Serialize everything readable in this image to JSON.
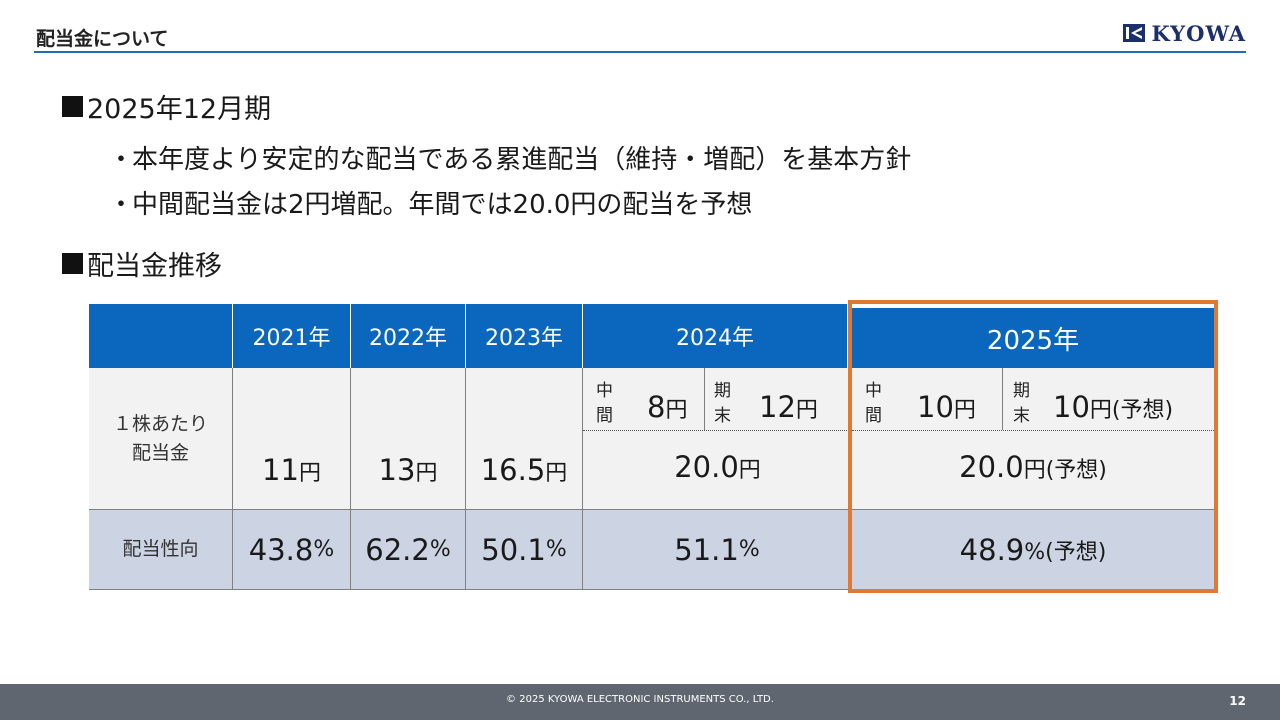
{
  "header": {
    "title": "配当金について",
    "logo_text": "KYOWA"
  },
  "section1": {
    "title": "2025年12月期",
    "bullets": [
      "本年度より安定的な配当である累進配当（維持・増配）を基本方針",
      "中間配当金は2円増配。年間では20.0円の配当を予想"
    ],
    "bullet_mark": "・"
  },
  "section2": {
    "title": "配当金推移"
  },
  "table": {
    "years": [
      "2021年",
      "2022年",
      "2023年",
      "2024年",
      "2025年"
    ],
    "row1_label": "１株あたり\n配当金",
    "row2_label": "配当性向",
    "dividends": [
      {
        "num": "11",
        "unit": "円"
      },
      {
        "num": "13",
        "unit": "円"
      },
      {
        "num": "16.5",
        "unit": "円"
      }
    ],
    "y2024": {
      "interim_label": "中間",
      "interim_num": "8",
      "interim_unit": "円",
      "final_label": "期末",
      "final_num": "12",
      "final_unit": "円",
      "annual_num": "20.0",
      "annual_unit": "円"
    },
    "y2025": {
      "interim_label": "中間",
      "interim_num": "10",
      "interim_unit": "円",
      "final_label": "期末",
      "final_num": "10",
      "final_unit": "円(予想)",
      "annual_num": "20.0",
      "annual_unit": "円(予想)"
    },
    "payout": [
      {
        "num": "43.8",
        "unit": "%"
      },
      {
        "num": "62.2",
        "unit": "%"
      },
      {
        "num": "50.1",
        "unit": "%"
      },
      {
        "num": "51.1",
        "unit": "%"
      },
      {
        "num": "48.9",
        "unit": "%(予想)"
      }
    ]
  },
  "footer": {
    "copyright": "© 2025 KYOWA ELECTRONIC INSTRUMENTS CO., LTD.",
    "page": "12"
  },
  "colors": {
    "header_blue": "#0b67bd",
    "highlight": "#e07a32",
    "ratio_bg": "#ccd3e3",
    "footer_bg": "#5f6670"
  }
}
